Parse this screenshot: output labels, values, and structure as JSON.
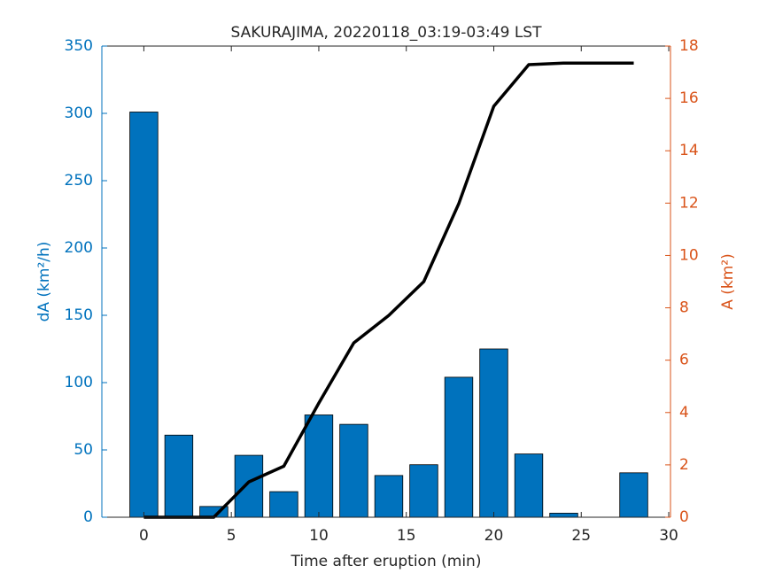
{
  "chart_data": {
    "type": "bar",
    "title": "SAKURAJIMA, 20220118_03:19-03:49 LST",
    "xlabel": "Time after eruption (min)",
    "ylabel": "dA (km²/h)",
    "y2label": "A (km²)",
    "x": [
      0,
      2,
      4,
      6,
      8,
      10,
      12,
      14,
      16,
      18,
      20,
      22,
      24,
      26,
      28
    ],
    "series": [
      {
        "type": "bar",
        "color": "#0072BD",
        "values": [
          301,
          61,
          8,
          46,
          19,
          76,
          69,
          31,
          39,
          104,
          125,
          47,
          3,
          0,
          33
        ]
      },
      {
        "type": "line",
        "axis": "y2",
        "color": "#000000",
        "values": [
          0,
          0,
          0,
          1.35,
          1.95,
          4.36,
          6.66,
          7.71,
          9.0,
          11.98,
          15.7,
          17.29,
          17.35,
          17.35,
          17.35
        ]
      }
    ],
    "xlim": [
      -2.4,
      30.1
    ],
    "xticks": [
      0,
      5,
      10,
      15,
      20,
      25,
      30
    ],
    "ylim": [
      0,
      350
    ],
    "yticks": [
      0,
      50,
      100,
      150,
      200,
      250,
      300,
      350
    ],
    "y2lim": [
      0,
      18
    ],
    "y2ticks": [
      0,
      2,
      4,
      6,
      8,
      10,
      12,
      14,
      16,
      18
    ],
    "bar_width": 1.6,
    "y_color": "#0072BD",
    "y2_color": "#D95319"
  }
}
